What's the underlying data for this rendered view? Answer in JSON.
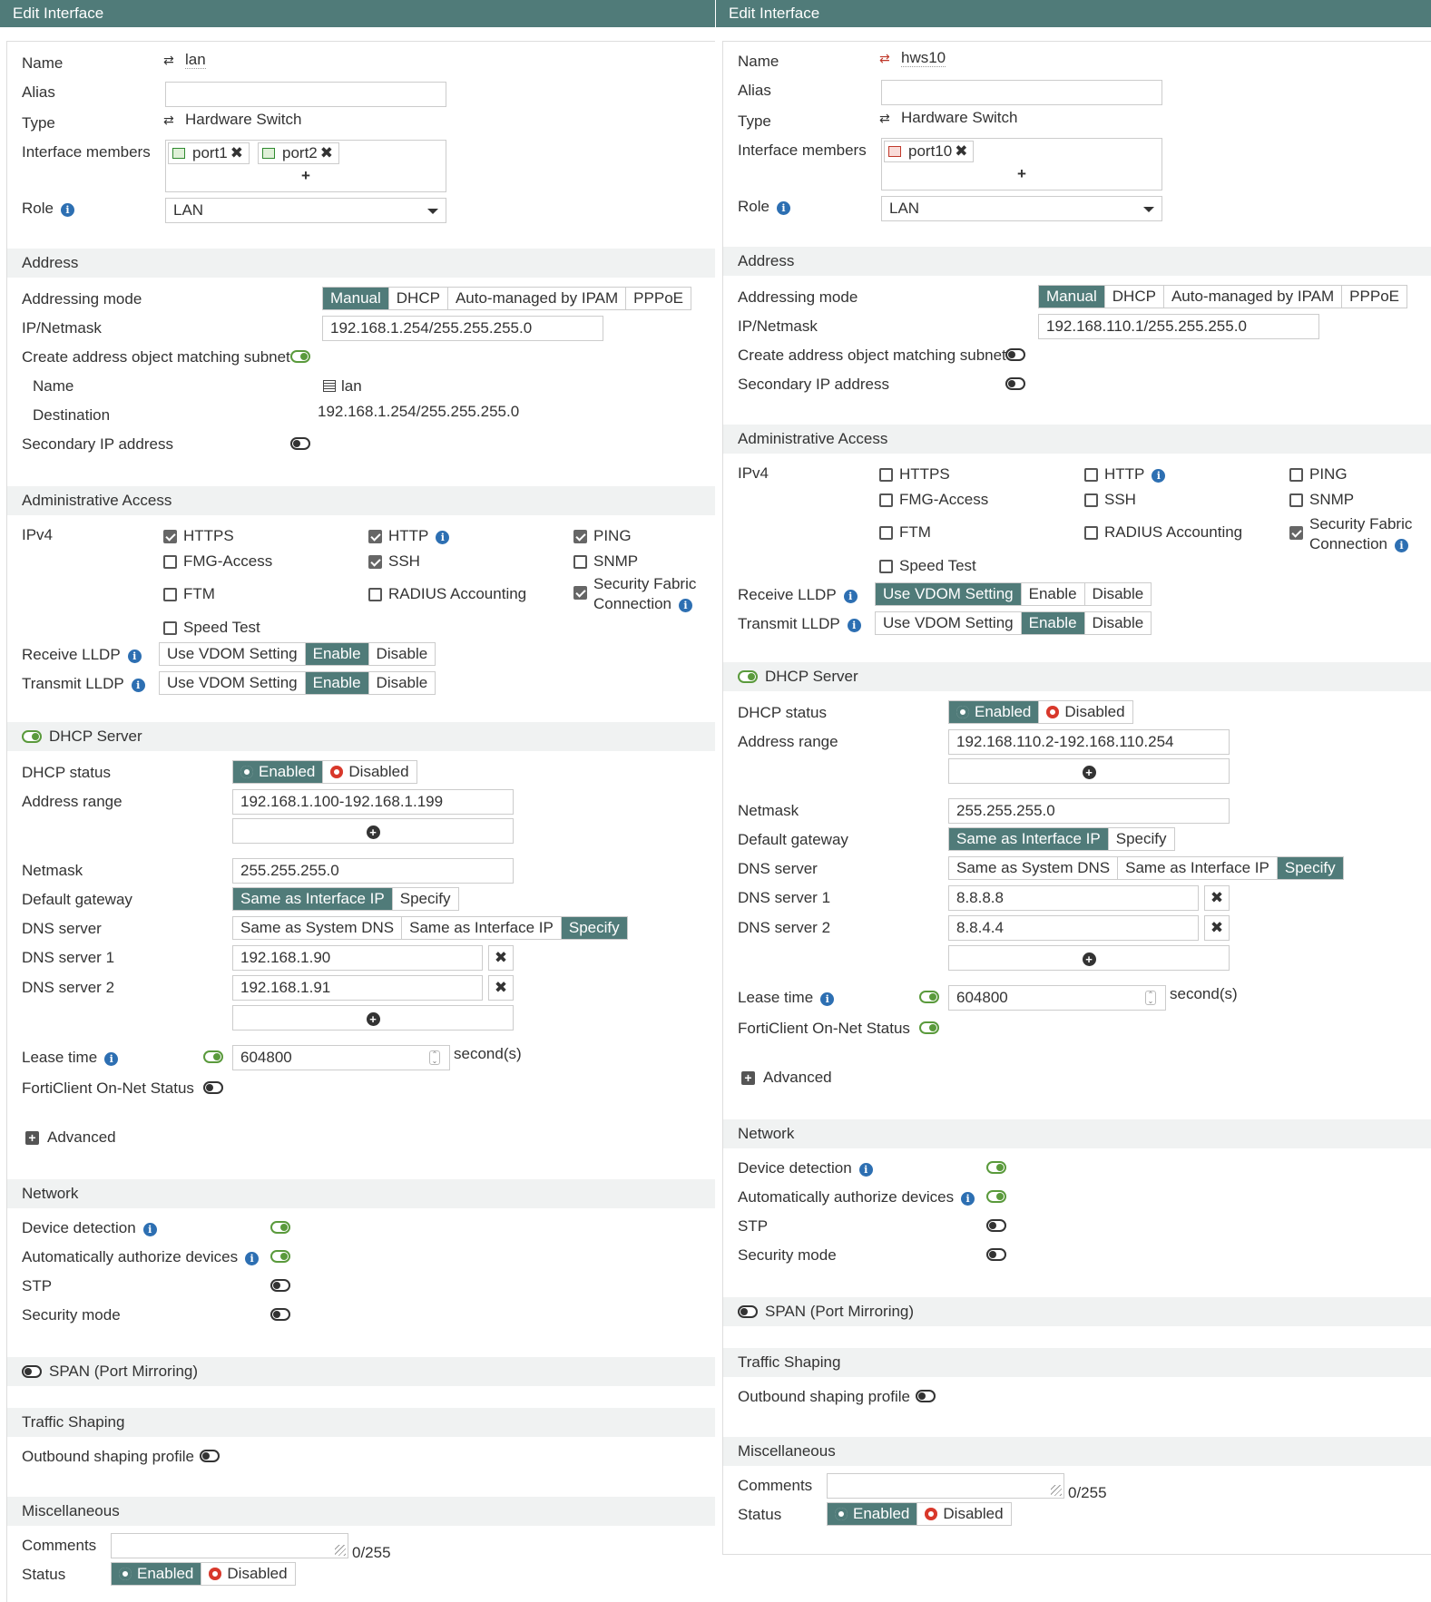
{
  "panels": [
    {
      "title": "Edit Interface",
      "fields": {
        "name_label": "Name",
        "name_value": "lan",
        "alias_label": "Alias",
        "alias_value": "",
        "type_label": "Type",
        "type_value": "Hardware Switch",
        "members_label": "Interface members",
        "members": [
          "port1",
          "port2"
        ],
        "role_label": "Role",
        "role_value": "LAN"
      },
      "address": {
        "header": "Address",
        "mode_label": "Addressing mode",
        "modes": [
          "Manual",
          "DHCP",
          "Auto-managed by IPAM",
          "PPPoE"
        ],
        "selected_mode": "Manual",
        "ipnetmask_label": "IP/Netmask",
        "ipnetmask_value": "192.168.1.254/255.255.255.0",
        "create_obj_label": "Create address object matching subnet",
        "create_obj_on": true,
        "obj_name_label": "Name",
        "obj_name_value": "lan",
        "obj_dest_label": "Destination",
        "obj_dest_value": "192.168.1.254/255.255.255.0",
        "secondary_label": "Secondary IP address",
        "secondary_on": false
      },
      "admin": {
        "header": "Administrative Access",
        "ipv4_label": "IPv4",
        "opts": {
          "https": {
            "label": "HTTPS",
            "checked": true
          },
          "http": {
            "label": "HTTP",
            "checked": true
          },
          "ping": {
            "label": "PING",
            "checked": true
          },
          "fmg": {
            "label": "FMG-Access",
            "checked": false
          },
          "ssh": {
            "label": "SSH",
            "checked": true
          },
          "snmp": {
            "label": "SNMP",
            "checked": false
          },
          "ftm": {
            "label": "FTM",
            "checked": false
          },
          "radius": {
            "label": "RADIUS Accounting",
            "checked": false
          },
          "sfc_line1": "Security Fabric",
          "sfc_line2": "Connection",
          "sfc_checked": true,
          "speed": {
            "label": "Speed Test",
            "checked": false
          }
        },
        "rx_lldp_label": "Receive LLDP",
        "rx_lldp_opts": [
          "Use VDOM Setting",
          "Enable",
          "Disable"
        ],
        "rx_lldp_sel": "Enable",
        "tx_lldp_label": "Transmit LLDP",
        "tx_lldp_opts": [
          "Use VDOM Setting",
          "Enable",
          "Disable"
        ],
        "tx_lldp_sel": "Enable"
      },
      "dhcp": {
        "header": "DHCP Server",
        "header_on": true,
        "status_label": "DHCP status",
        "status_opts": [
          "Enabled",
          "Disabled"
        ],
        "status_sel": "Enabled",
        "range_label": "Address range",
        "range_value": "192.168.1.100-192.168.1.199",
        "netmask_label": "Netmask",
        "netmask_value": "255.255.255.0",
        "gw_label": "Default gateway",
        "gw_opts": [
          "Same as Interface IP",
          "Specify"
        ],
        "gw_sel": "Same as Interface IP",
        "dns_label": "DNS server",
        "dns_opts": [
          "Same as System DNS",
          "Same as Interface IP",
          "Specify"
        ],
        "dns_sel": "Specify",
        "dns1_label": "DNS server 1",
        "dns1_value": "192.168.1.90",
        "dns2_label": "DNS server 2",
        "dns2_value": "192.168.1.91",
        "lease_label": "Lease time",
        "lease_on": true,
        "lease_value": "604800",
        "lease_unit": "second(s)",
        "forti_label": "FortiClient On-Net Status",
        "forti_on": false,
        "advanced_label": "Advanced"
      },
      "network": {
        "header": "Network",
        "device_label": "Device detection",
        "device_on": true,
        "auth_label": "Automatically authorize devices",
        "auth_on": true,
        "stp_label": "STP",
        "stp_on": false,
        "secmode_label": "Security mode",
        "secmode_on": false
      },
      "span": {
        "label": "SPAN (Port Mirroring)",
        "on": false
      },
      "traffic": {
        "header": "Traffic Shaping",
        "outbound_label": "Outbound shaping profile",
        "outbound_on": false
      },
      "misc": {
        "header": "Miscellaneous",
        "comments_label": "Comments",
        "comments_count": "0/255",
        "status_label": "Status",
        "status_opts": [
          "Enabled",
          "Disabled"
        ],
        "status_sel": "Enabled"
      }
    },
    {
      "title": "Edit Interface",
      "fields": {
        "name_label": "Name",
        "name_value": "hws10",
        "alias_label": "Alias",
        "alias_value": "",
        "type_label": "Type",
        "type_value": "Hardware Switch",
        "members_label": "Interface members",
        "members": [
          "port10"
        ],
        "role_label": "Role",
        "role_value": "LAN"
      },
      "address": {
        "header": "Address",
        "mode_label": "Addressing mode",
        "modes": [
          "Manual",
          "DHCP",
          "Auto-managed by IPAM",
          "PPPoE"
        ],
        "selected_mode": "Manual",
        "ipnetmask_label": "IP/Netmask",
        "ipnetmask_value": "192.168.110.1/255.255.255.0",
        "create_obj_label": "Create address object matching subnet",
        "create_obj_on": false,
        "secondary_label": "Secondary IP address",
        "secondary_on": false
      },
      "admin": {
        "header": "Administrative Access",
        "ipv4_label": "IPv4",
        "opts": {
          "https": {
            "label": "HTTPS",
            "checked": false
          },
          "http": {
            "label": "HTTP",
            "checked": false
          },
          "ping": {
            "label": "PING",
            "checked": false
          },
          "fmg": {
            "label": "FMG-Access",
            "checked": false
          },
          "ssh": {
            "label": "SSH",
            "checked": false
          },
          "snmp": {
            "label": "SNMP",
            "checked": false
          },
          "ftm": {
            "label": "FTM",
            "checked": false
          },
          "radius": {
            "label": "RADIUS Accounting",
            "checked": false
          },
          "sfc_line1": "Security Fabric",
          "sfc_line2": "Connection",
          "sfc_checked": true,
          "speed": {
            "label": "Speed Test",
            "checked": false
          }
        },
        "rx_lldp_label": "Receive LLDP",
        "rx_lldp_opts": [
          "Use VDOM Setting",
          "Enable",
          "Disable"
        ],
        "rx_lldp_sel": "Use VDOM Setting",
        "tx_lldp_label": "Transmit LLDP",
        "tx_lldp_opts": [
          "Use VDOM Setting",
          "Enable",
          "Disable"
        ],
        "tx_lldp_sel": "Enable"
      },
      "dhcp": {
        "header": "DHCP Server",
        "header_on": true,
        "status_label": "DHCP status",
        "status_opts": [
          "Enabled",
          "Disabled"
        ],
        "status_sel": "Enabled",
        "range_label": "Address range",
        "range_value": "192.168.110.2-192.168.110.254",
        "netmask_label": "Netmask",
        "netmask_value": "255.255.255.0",
        "gw_label": "Default gateway",
        "gw_opts": [
          "Same as Interface IP",
          "Specify"
        ],
        "gw_sel": "Same as Interface IP",
        "dns_label": "DNS server",
        "dns_opts": [
          "Same as System DNS",
          "Same as Interface IP",
          "Specify"
        ],
        "dns_sel": "Specify",
        "dns1_label": "DNS server 1",
        "dns1_value": "8.8.8.8",
        "dns2_label": "DNS server 2",
        "dns2_value": "8.8.4.4",
        "lease_label": "Lease time",
        "lease_on": true,
        "lease_value": "604800",
        "lease_unit": "second(s)",
        "forti_label": "FortiClient On-Net Status",
        "forti_on": true,
        "advanced_label": "Advanced"
      },
      "network": {
        "header": "Network",
        "device_label": "Device detection",
        "device_on": true,
        "auth_label": "Automatically authorize devices",
        "auth_on": true,
        "stp_label": "STP",
        "stp_on": false,
        "secmode_label": "Security mode",
        "secmode_on": false
      },
      "span": {
        "label": "SPAN (Port Mirroring)",
        "on": false
      },
      "traffic": {
        "header": "Traffic Shaping",
        "outbound_label": "Outbound shaping profile",
        "outbound_on": false
      },
      "misc": {
        "header": "Miscellaneous",
        "comments_label": "Comments",
        "comments_count": "0/255",
        "status_label": "Status",
        "status_opts": [
          "Enabled",
          "Disabled"
        ],
        "status_sel": "Enabled"
      }
    }
  ]
}
